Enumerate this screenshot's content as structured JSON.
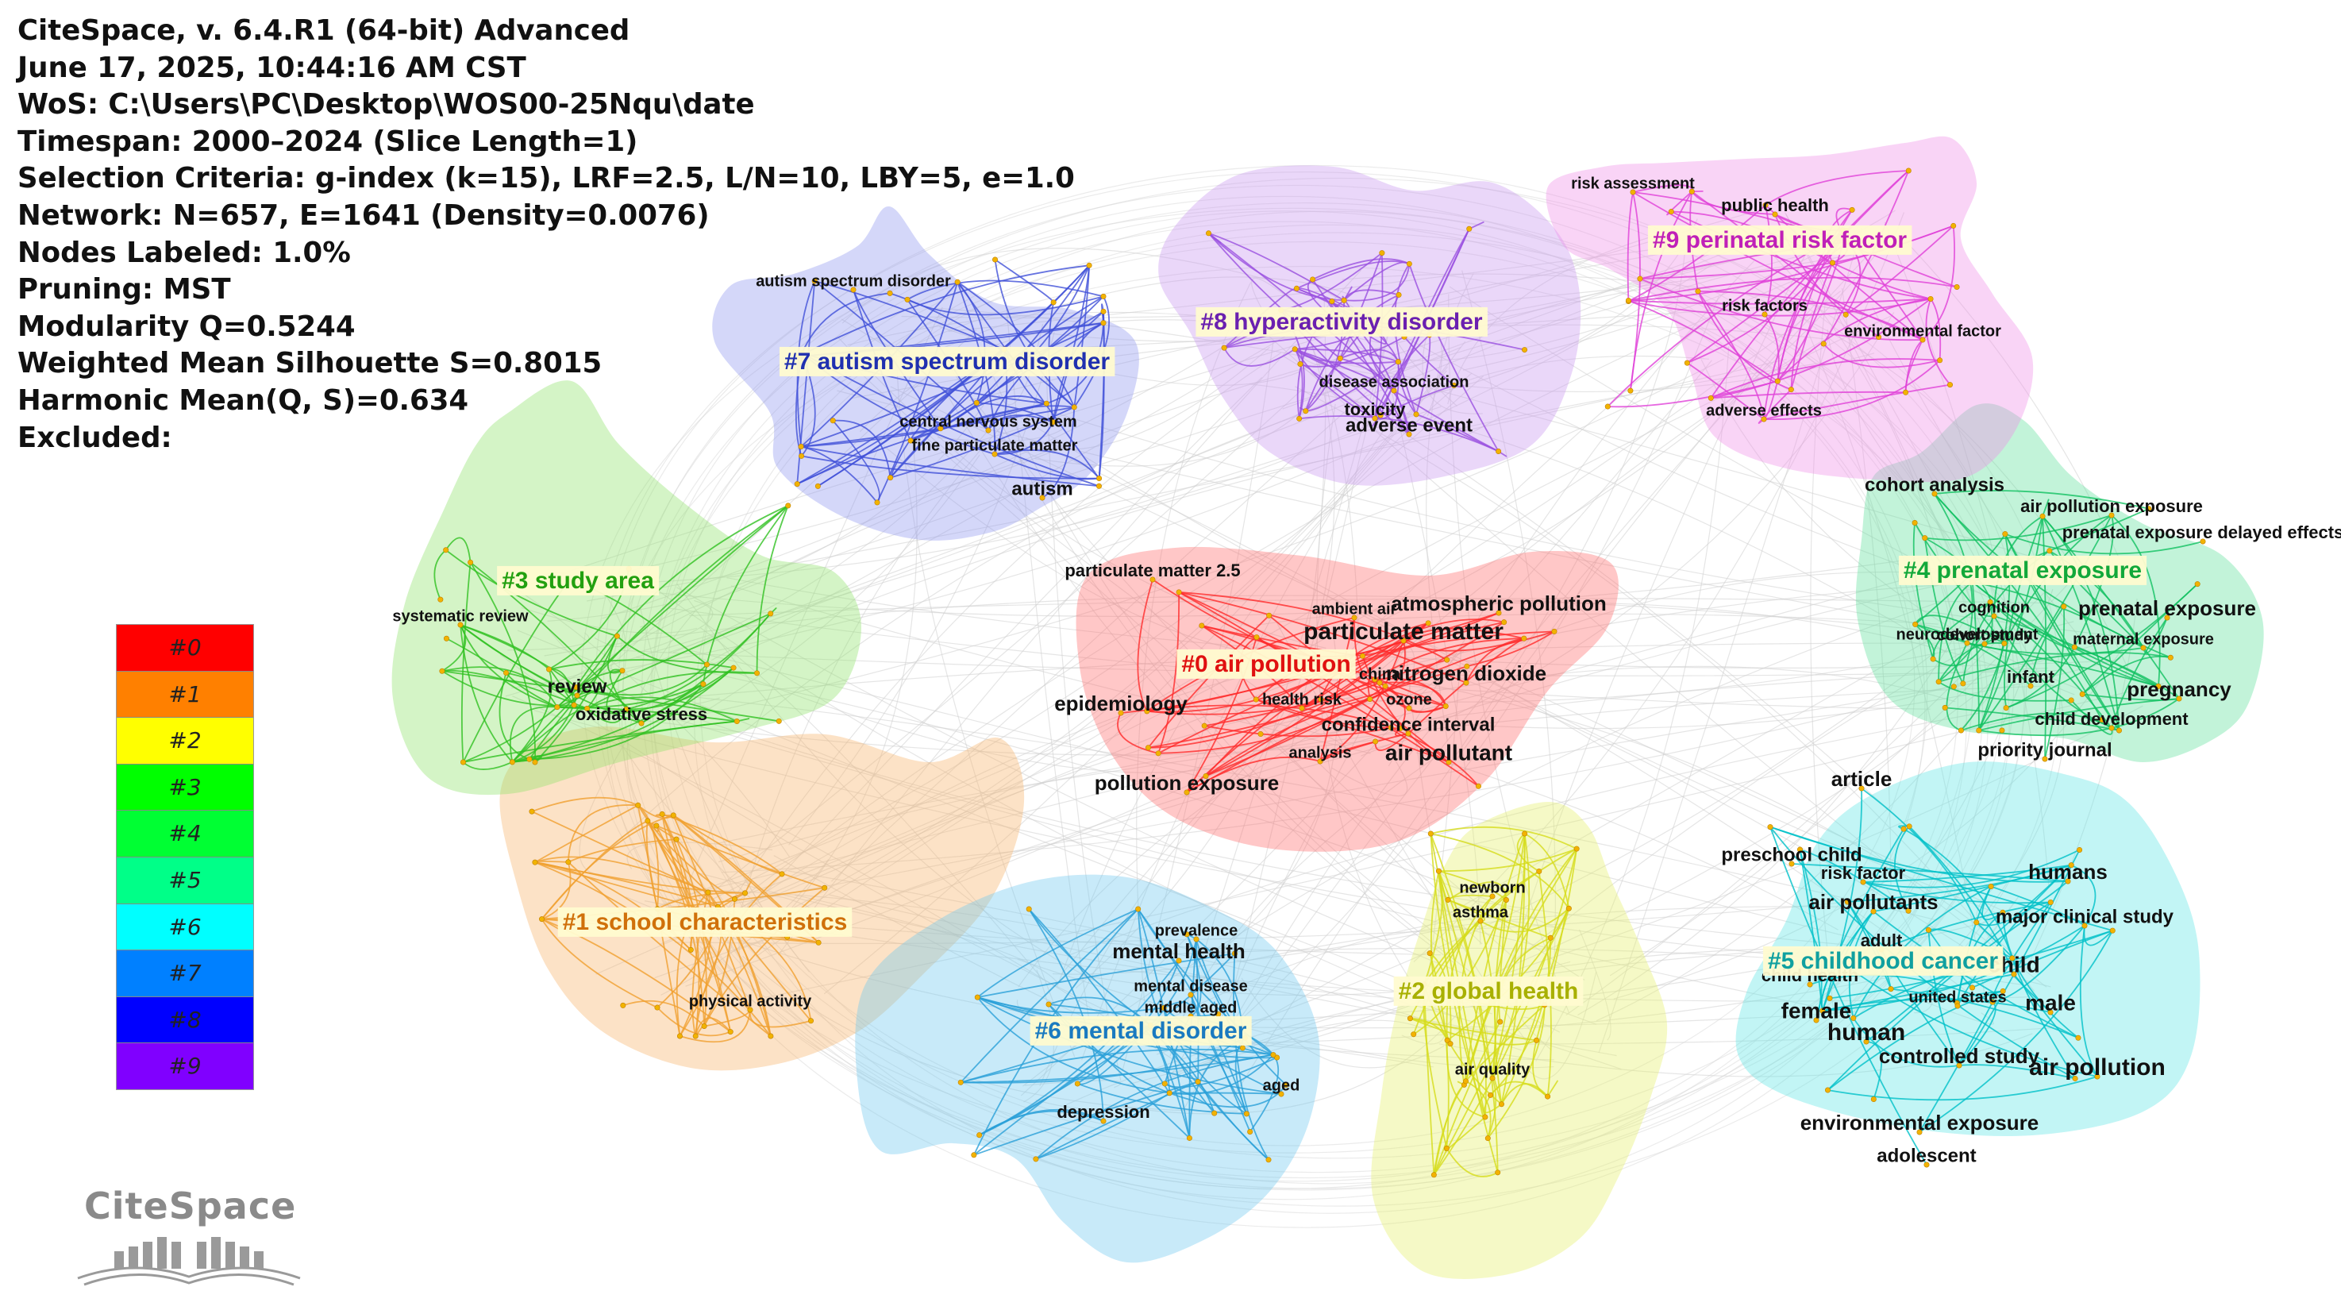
{
  "info_panel": [
    "CiteSpace, v. 6.4.R1 (64-bit) Advanced",
    "June 17, 2025, 10:44:16 AM CST",
    "WoS: C:\\Users\\PC\\Desktop\\WOS00-25Nqu\\date",
    "Timespan: 2000–2024 (Slice Length=1)",
    "Selection Criteria: g-index (k=15), LRF=2.5, L/N=10, LBY=5, e=1.0",
    "Network: N=657, E=1641 (Density=0.0076)",
    "Nodes Labeled: 1.0%",
    "Pruning: MST",
    "Modularity Q=0.5244",
    "Weighted Mean Silhouette S=0.8015",
    "Harmonic Mean(Q, S)=0.634",
    "Excluded:"
  ],
  "legend": [
    {
      "label": "#0",
      "color": "#ff0000"
    },
    {
      "label": "#1",
      "color": "#ff8000"
    },
    {
      "label": "#2",
      "color": "#ffff00"
    },
    {
      "label": "#3",
      "color": "#00ff00"
    },
    {
      "label": "#4",
      "color": "#00ff33"
    },
    {
      "label": "#5",
      "color": "#00ff88"
    },
    {
      "label": "#6",
      "color": "#00ffff"
    },
    {
      "label": "#7",
      "color": "#0080ff"
    },
    {
      "label": "#8",
      "color": "#0000ff"
    },
    {
      "label": "#9",
      "color": "#8000ff"
    }
  ],
  "logo_text": "CiteSpace",
  "clusters": [
    {
      "id": "c0",
      "label": "#0 air pollution",
      "fill": "#ff6b6b",
      "label_color": "#e01010",
      "edge_color": "#ff2a2a",
      "keywords": [
        "particulate matter 2.5",
        "ambient air",
        "atmospheric pollution",
        "particulate matter",
        "china",
        "nitrogen dioxide",
        "epidemiology",
        "health risk",
        "ozone",
        "confidence interval",
        "analysis",
        "air pollutant",
        "pollution exposure"
      ]
    },
    {
      "id": "c1",
      "label": "#1 school characteristics",
      "fill": "#f7b26a",
      "label_color": "#d0700a",
      "edge_color": "#f0a030",
      "keywords": [
        "physical activity"
      ]
    },
    {
      "id": "c2",
      "label": "#2 global health",
      "fill": "#e6f06a",
      "label_color": "#a8b000",
      "edge_color": "#d6dc1a",
      "keywords": [
        "newborn",
        "asthma",
        "air quality"
      ]
    },
    {
      "id": "c3",
      "label": "#3 study area",
      "fill": "#8ee26a",
      "label_color": "#22a010",
      "edge_color": "#30c020",
      "keywords": [
        "systematic review",
        "review",
        "oxidative stress"
      ]
    },
    {
      "id": "c4",
      "label": "#4 prenatal exposure",
      "fill": "#5fe09a",
      "label_color": "#12a83a",
      "edge_color": "#10c060",
      "keywords": [
        "cohort analysis",
        "air pollution exposure",
        "prenatal exposure delayed effects",
        "cognition",
        "prenatal exposure",
        "neurodevelopment",
        "cohort study",
        "maternal exposure",
        "infant",
        "pregnancy",
        "child development",
        "priority journal"
      ]
    },
    {
      "id": "c5",
      "label": "#5 childhood cancer",
      "fill": "#5fe6e6",
      "label_color": "#10a0a0",
      "edge_color": "#00c0c8",
      "keywords": [
        "article",
        "preschool child",
        "risk factor",
        "humans",
        "air pollutants",
        "major clinical study",
        "adult",
        "child",
        "child health",
        "united states",
        "male",
        "female",
        "human",
        "controlled study",
        "air pollution",
        "environmental exposure",
        "adolescent"
      ]
    },
    {
      "id": "c6",
      "label": "#6 mental disorder",
      "fill": "#6ec8f0",
      "label_color": "#1a7ac0",
      "edge_color": "#2aa0d8",
      "keywords": [
        "prevalence",
        "mental health",
        "mental disease",
        "middle aged",
        "aged",
        "depression"
      ]
    },
    {
      "id": "c7",
      "label": "#7 autism spectrum disorder",
      "fill": "#8e96ee",
      "label_color": "#2030b0",
      "edge_color": "#4050d8",
      "keywords": [
        "autism spectrum disorder",
        "central nervous system",
        "fine particulate matter",
        "autism"
      ]
    },
    {
      "id": "c8",
      "label": "#8 hyperactivity disorder",
      "fill": "#c896f0",
      "label_color": "#6a20b0",
      "edge_color": "#9a50e0",
      "keywords": [
        "disease association",
        "toxicity",
        "adverse event"
      ]
    },
    {
      "id": "c9",
      "label": "#9 perinatal risk factor",
      "fill": "#f08ee8",
      "label_color": "#c020b8",
      "edge_color": "#e040d8",
      "keywords": [
        "risk assessment",
        "public health",
        "risk factors",
        "environmental factor",
        "adverse effects"
      ]
    }
  ]
}
